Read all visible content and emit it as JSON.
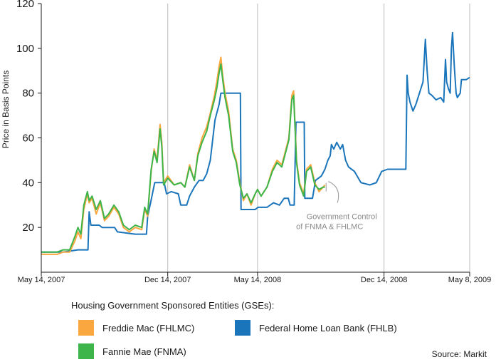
{
  "colors": {
    "freddie": "#F9A73E",
    "fannie": "#3DB54A",
    "fhlb": "#1B75BB",
    "grid": "#bdbdbd",
    "axis": "#1a1a1a"
  },
  "chart_data": {
    "type": "line",
    "ylabel": "Price in Basis Points",
    "ylim": [
      0,
      120
    ],
    "yticks": [
      20,
      40,
      60,
      80,
      100,
      120
    ],
    "xlim": [
      "2007-05-14",
      "2009-05-08"
    ],
    "xticks": [
      {
        "date": "2007-05-14",
        "label": "May 14, 2007"
      },
      {
        "date": "2007-12-14",
        "label": "Dec 14, 2007"
      },
      {
        "date": "2008-05-14",
        "label": "May 14, 2008"
      },
      {
        "date": "2008-12-14",
        "label": "Dec 14, 2008"
      },
      {
        "date": "2009-05-08",
        "label": "May 8, 2009"
      }
    ],
    "grid": "vertical",
    "annotation": {
      "lines": [
        "Government Control",
        "of FNMA & FHLMC"
      ],
      "date": "2008-09-07",
      "value": 38
    },
    "legend_title": "Housing Government Sponsored Entities (GSEs):",
    "source": "Source: Markit",
    "series": [
      {
        "name": "Freddie Mac (FHLMC)",
        "key": "freddie",
        "points": [
          [
            "2007-05-14",
            8
          ],
          [
            "2007-06-10",
            8
          ],
          [
            "2007-06-20",
            9
          ],
          [
            "2007-07-01",
            9
          ],
          [
            "2007-07-10",
            14
          ],
          [
            "2007-07-15",
            18
          ],
          [
            "2007-07-20",
            15
          ],
          [
            "2007-07-25",
            28
          ],
          [
            "2007-07-31",
            35
          ],
          [
            "2007-08-03",
            31
          ],
          [
            "2007-08-08",
            33
          ],
          [
            "2007-08-15",
            26
          ],
          [
            "2007-08-22",
            31
          ],
          [
            "2007-08-29",
            23
          ],
          [
            "2007-09-05",
            25
          ],
          [
            "2007-09-14",
            29
          ],
          [
            "2007-09-22",
            26
          ],
          [
            "2007-09-30",
            20
          ],
          [
            "2007-10-10",
            18
          ],
          [
            "2007-10-20",
            20
          ],
          [
            "2007-10-31",
            19
          ],
          [
            "2007-11-05",
            28
          ],
          [
            "2007-11-10",
            25
          ],
          [
            "2007-11-16",
            45
          ],
          [
            "2007-11-21",
            55
          ],
          [
            "2007-11-26",
            50
          ],
          [
            "2007-12-01",
            66
          ],
          [
            "2007-12-04",
            58
          ],
          [
            "2007-12-07",
            40
          ],
          [
            "2007-12-14",
            43
          ],
          [
            "2007-12-25",
            39
          ],
          [
            "2008-01-05",
            40
          ],
          [
            "2008-01-12",
            38
          ],
          [
            "2008-01-20",
            48
          ],
          [
            "2008-01-28",
            41
          ],
          [
            "2008-02-03",
            53
          ],
          [
            "2008-02-10",
            60
          ],
          [
            "2008-02-18",
            65
          ],
          [
            "2008-02-24",
            71
          ],
          [
            "2008-03-02",
            79
          ],
          [
            "2008-03-06",
            85
          ],
          [
            "2008-03-10",
            92
          ],
          [
            "2008-03-13",
            96
          ],
          [
            "2008-03-16",
            88
          ],
          [
            "2008-03-20",
            80
          ],
          [
            "2008-03-26",
            72
          ],
          [
            "2008-04-02",
            55
          ],
          [
            "2008-04-08",
            50
          ],
          [
            "2008-04-14",
            40
          ],
          [
            "2008-04-20",
            32
          ],
          [
            "2008-04-26",
            35
          ],
          [
            "2008-05-03",
            30
          ],
          [
            "2008-05-10",
            35
          ],
          [
            "2008-05-14",
            37
          ],
          [
            "2008-05-20",
            34
          ],
          [
            "2008-05-30",
            38
          ],
          [
            "2008-06-08",
            46
          ],
          [
            "2008-06-16",
            50
          ],
          [
            "2008-06-24",
            48
          ],
          [
            "2008-07-01",
            55
          ],
          [
            "2008-07-06",
            60
          ],
          [
            "2008-07-11",
            79
          ],
          [
            "2008-07-14",
            81
          ],
          [
            "2008-07-19",
            50
          ],
          [
            "2008-07-24",
            40
          ],
          [
            "2008-07-31",
            35
          ],
          [
            "2008-08-05",
            46
          ],
          [
            "2008-08-12",
            48
          ],
          [
            "2008-08-19",
            40
          ],
          [
            "2008-08-26",
            36
          ],
          [
            "2008-09-02",
            38
          ],
          [
            "2008-09-05",
            39
          ]
        ]
      },
      {
        "name": "Fannie Mae (FNMA)",
        "key": "fannie",
        "points": [
          [
            "2007-05-14",
            9
          ],
          [
            "2007-06-10",
            9
          ],
          [
            "2007-06-20",
            10
          ],
          [
            "2007-07-01",
            10
          ],
          [
            "2007-07-10",
            16
          ],
          [
            "2007-07-15",
            20
          ],
          [
            "2007-07-20",
            17
          ],
          [
            "2007-07-25",
            30
          ],
          [
            "2007-07-31",
            36
          ],
          [
            "2007-08-03",
            32
          ],
          [
            "2007-08-08",
            34
          ],
          [
            "2007-08-15",
            28
          ],
          [
            "2007-08-22",
            32
          ],
          [
            "2007-08-29",
            24
          ],
          [
            "2007-09-05",
            26
          ],
          [
            "2007-09-14",
            30
          ],
          [
            "2007-09-22",
            27
          ],
          [
            "2007-09-30",
            21
          ],
          [
            "2007-10-10",
            19
          ],
          [
            "2007-10-20",
            21
          ],
          [
            "2007-10-31",
            20
          ],
          [
            "2007-11-05",
            29
          ],
          [
            "2007-11-10",
            26
          ],
          [
            "2007-11-16",
            46
          ],
          [
            "2007-11-21",
            54
          ],
          [
            "2007-11-26",
            49
          ],
          [
            "2007-12-01",
            64
          ],
          [
            "2007-12-04",
            56
          ],
          [
            "2007-12-07",
            39
          ],
          [
            "2007-12-14",
            42
          ],
          [
            "2007-12-25",
            39
          ],
          [
            "2008-01-05",
            40
          ],
          [
            "2008-01-12",
            38
          ],
          [
            "2008-01-20",
            47
          ],
          [
            "2008-01-28",
            41
          ],
          [
            "2008-02-03",
            52
          ],
          [
            "2008-02-10",
            58
          ],
          [
            "2008-02-18",
            63
          ],
          [
            "2008-02-24",
            70
          ],
          [
            "2008-03-02",
            77
          ],
          [
            "2008-03-06",
            82
          ],
          [
            "2008-03-10",
            89
          ],
          [
            "2008-03-13",
            93
          ],
          [
            "2008-03-16",
            86
          ],
          [
            "2008-03-20",
            78
          ],
          [
            "2008-03-26",
            70
          ],
          [
            "2008-04-02",
            54
          ],
          [
            "2008-04-08",
            49
          ],
          [
            "2008-04-14",
            39
          ],
          [
            "2008-04-20",
            33
          ],
          [
            "2008-04-26",
            35
          ],
          [
            "2008-05-03",
            31
          ],
          [
            "2008-05-10",
            35
          ],
          [
            "2008-05-14",
            37
          ],
          [
            "2008-05-20",
            34
          ],
          [
            "2008-05-30",
            38
          ],
          [
            "2008-06-08",
            45
          ],
          [
            "2008-06-16",
            49
          ],
          [
            "2008-06-24",
            47
          ],
          [
            "2008-07-01",
            54
          ],
          [
            "2008-07-06",
            59
          ],
          [
            "2008-07-11",
            77
          ],
          [
            "2008-07-14",
            79
          ],
          [
            "2008-07-19",
            49
          ],
          [
            "2008-07-24",
            39
          ],
          [
            "2008-07-31",
            34
          ],
          [
            "2008-08-05",
            45
          ],
          [
            "2008-08-12",
            47
          ],
          [
            "2008-08-19",
            39
          ],
          [
            "2008-08-26",
            37
          ],
          [
            "2008-09-02",
            38
          ],
          [
            "2008-09-05",
            38
          ]
        ]
      },
      {
        "name": "Federal Home Loan Bank (FHLB)",
        "key": "fhlb",
        "points": [
          [
            "2007-05-14",
            9
          ],
          [
            "2007-06-20",
            9
          ],
          [
            "2007-07-15",
            10
          ],
          [
            "2007-08-01",
            10
          ],
          [
            "2007-08-03",
            27
          ],
          [
            "2007-08-06",
            21
          ],
          [
            "2007-08-20",
            21
          ],
          [
            "2007-08-25",
            20
          ],
          [
            "2007-09-15",
            20
          ],
          [
            "2007-09-20",
            18
          ],
          [
            "2007-10-20",
            17
          ],
          [
            "2007-11-08",
            17
          ],
          [
            "2007-11-10",
            25
          ],
          [
            "2007-11-15",
            31
          ],
          [
            "2007-11-22",
            40
          ],
          [
            "2007-12-08",
            40
          ],
          [
            "2007-12-12",
            35
          ],
          [
            "2007-12-20",
            36
          ],
          [
            "2008-01-01",
            35
          ],
          [
            "2008-01-05",
            30
          ],
          [
            "2008-01-15",
            30
          ],
          [
            "2008-01-20",
            34
          ],
          [
            "2008-01-28",
            38
          ],
          [
            "2008-02-05",
            41
          ],
          [
            "2008-02-12",
            41
          ],
          [
            "2008-02-18",
            44
          ],
          [
            "2008-02-24",
            50
          ],
          [
            "2008-03-03",
            68
          ],
          [
            "2008-03-10",
            75
          ],
          [
            "2008-03-13",
            80
          ],
          [
            "2008-04-15",
            80
          ],
          [
            "2008-04-16",
            28
          ],
          [
            "2008-05-10",
            28
          ],
          [
            "2008-05-15",
            29
          ],
          [
            "2008-05-30",
            29
          ],
          [
            "2008-06-10",
            31
          ],
          [
            "2008-06-20",
            30
          ],
          [
            "2008-06-28",
            33
          ],
          [
            "2008-07-05",
            33
          ],
          [
            "2008-07-08",
            30
          ],
          [
            "2008-07-15",
            30
          ],
          [
            "2008-07-18",
            67
          ],
          [
            "2008-08-01",
            67
          ],
          [
            "2008-08-02",
            33
          ],
          [
            "2008-08-15",
            33
          ],
          [
            "2008-08-20",
            41
          ],
          [
            "2008-08-30",
            43
          ],
          [
            "2008-09-05",
            46
          ],
          [
            "2008-09-10",
            50
          ],
          [
            "2008-09-14",
            52
          ],
          [
            "2008-09-16",
            57
          ],
          [
            "2008-09-20",
            55
          ],
          [
            "2008-09-25",
            58
          ],
          [
            "2008-10-01",
            55
          ],
          [
            "2008-10-05",
            57
          ],
          [
            "2008-10-10",
            50
          ],
          [
            "2008-10-15",
            47
          ],
          [
            "2008-10-25",
            45
          ],
          [
            "2008-11-05",
            40
          ],
          [
            "2008-11-20",
            39
          ],
          [
            "2008-12-01",
            40
          ],
          [
            "2008-12-10",
            45
          ],
          [
            "2008-12-20",
            46
          ],
          [
            "2009-01-20",
            46
          ],
          [
            "2009-01-22",
            88
          ],
          [
            "2009-01-24",
            80
          ],
          [
            "2009-01-27",
            76
          ],
          [
            "2009-02-01",
            72
          ],
          [
            "2009-02-06",
            75
          ],
          [
            "2009-02-12",
            80
          ],
          [
            "2009-02-18",
            85
          ],
          [
            "2009-02-22",
            104
          ],
          [
            "2009-02-25",
            90
          ],
          [
            "2009-02-28",
            80
          ],
          [
            "2009-03-05",
            79
          ],
          [
            "2009-03-12",
            77
          ],
          [
            "2009-03-20",
            78
          ],
          [
            "2009-03-25",
            76
          ],
          [
            "2009-03-28",
            95
          ],
          [
            "2009-03-30",
            85
          ],
          [
            "2009-04-02",
            82
          ],
          [
            "2009-04-05",
            80
          ],
          [
            "2009-04-07",
            100
          ],
          [
            "2009-04-09",
            107
          ],
          [
            "2009-04-12",
            92
          ],
          [
            "2009-04-15",
            80
          ],
          [
            "2009-04-17",
            78
          ],
          [
            "2009-04-22",
            80
          ],
          [
            "2009-04-24",
            86
          ],
          [
            "2009-05-02",
            86
          ],
          [
            "2009-05-08",
            87
          ]
        ]
      }
    ]
  },
  "legend": [
    {
      "label": "Freddie Mac (FHLMC)",
      "color_key": "freddie"
    },
    {
      "label": "Fannie Mae (FNMA)",
      "color_key": "fannie"
    },
    {
      "label": "Federal Home Loan Bank (FHLB)",
      "color_key": "fhlb"
    }
  ]
}
